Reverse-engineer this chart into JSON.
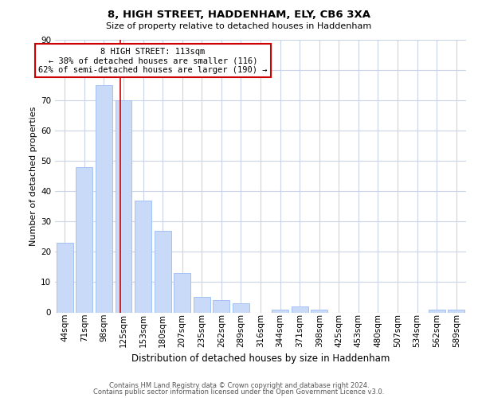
{
  "title": "8, HIGH STREET, HADDENHAM, ELY, CB6 3XA",
  "subtitle": "Size of property relative to detached houses in Haddenham",
  "xlabel": "Distribution of detached houses by size in Haddenham",
  "ylabel": "Number of detached properties",
  "bar_labels": [
    "44sqm",
    "71sqm",
    "98sqm",
    "125sqm",
    "153sqm",
    "180sqm",
    "207sqm",
    "235sqm",
    "262sqm",
    "289sqm",
    "316sqm",
    "344sqm",
    "371sqm",
    "398sqm",
    "425sqm",
    "453sqm",
    "480sqm",
    "507sqm",
    "534sqm",
    "562sqm",
    "589sqm"
  ],
  "bar_values": [
    23,
    48,
    75,
    70,
    37,
    27,
    13,
    5,
    4,
    3,
    0,
    1,
    2,
    1,
    0,
    0,
    0,
    0,
    0,
    1,
    1
  ],
  "bar_color": "#c9daf8",
  "bar_edge_color": "#a4c2f4",
  "vline_x_index": 2.85,
  "vline_color": "#cc0000",
  "annotation_title": "8 HIGH STREET: 113sqm",
  "annotation_line1": "← 38% of detached houses are smaller (116)",
  "annotation_line2": "62% of semi-detached houses are larger (190) →",
  "annotation_box_color": "#ffffff",
  "annotation_box_edge": "#cc0000",
  "ylim": [
    0,
    90
  ],
  "yticks": [
    0,
    10,
    20,
    30,
    40,
    50,
    60,
    70,
    80,
    90
  ],
  "footer1": "Contains HM Land Registry data © Crown copyright and database right 2024.",
  "footer2": "Contains public sector information licensed under the Open Government Licence v3.0.",
  "bg_color": "#ffffff",
  "grid_color": "#c9d4e8",
  "title_fontsize": 9.5,
  "subtitle_fontsize": 8.0,
  "ylabel_fontsize": 8.0,
  "xlabel_fontsize": 8.5,
  "tick_fontsize": 7.5,
  "footer_fontsize": 6.0
}
